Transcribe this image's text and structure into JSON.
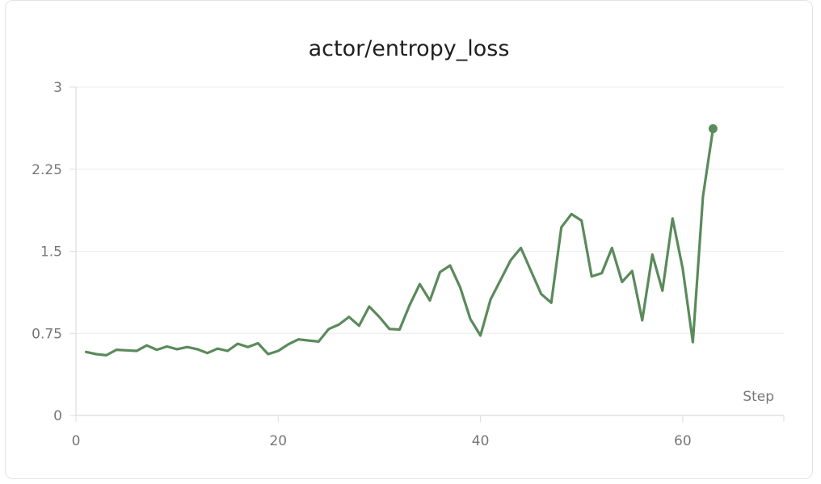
{
  "chart_data": {
    "type": "line",
    "title": "actor/entropy_loss",
    "xlabel": "Step",
    "ylabel": "",
    "xlim": [
      0,
      70
    ],
    "ylim": [
      0,
      3
    ],
    "xticks": [
      "0",
      "20",
      "40",
      "60"
    ],
    "yticks": [
      "0",
      "0.75",
      "1.5",
      "2.25",
      "3"
    ],
    "grid": true,
    "series": [
      {
        "color": "#5b8a5b",
        "x": [
          1,
          2,
          3,
          4,
          5,
          6,
          7,
          8,
          9,
          10,
          11,
          12,
          13,
          14,
          15,
          16,
          17,
          18,
          19,
          20,
          21,
          22,
          23,
          24,
          25,
          26,
          27,
          28,
          29,
          30,
          31,
          32,
          33,
          34,
          35,
          36,
          37,
          38,
          39,
          40,
          41,
          42,
          43,
          44,
          45,
          46,
          47,
          48,
          49,
          50,
          51,
          52,
          53,
          54,
          55,
          56,
          57,
          58,
          59,
          60,
          61,
          62,
          63
        ],
        "y": [
          0.58,
          0.56,
          0.55,
          0.6,
          0.595,
          0.59,
          0.64,
          0.6,
          0.63,
          0.605,
          0.625,
          0.605,
          0.57,
          0.61,
          0.59,
          0.655,
          0.625,
          0.66,
          0.56,
          0.59,
          0.65,
          0.695,
          0.685,
          0.675,
          0.79,
          0.83,
          0.9,
          0.82,
          0.995,
          0.9,
          0.79,
          0.785,
          1.01,
          1.2,
          1.05,
          1.31,
          1.37,
          1.17,
          0.88,
          0.73,
          1.06,
          1.24,
          1.42,
          1.53,
          1.32,
          1.11,
          1.03,
          1.72,
          1.84,
          1.78,
          1.27,
          1.3,
          1.53,
          1.22,
          1.32,
          0.87,
          1.47,
          1.14,
          1.8,
          1.34,
          0.67,
          2.0,
          2.62
        ]
      }
    ]
  }
}
